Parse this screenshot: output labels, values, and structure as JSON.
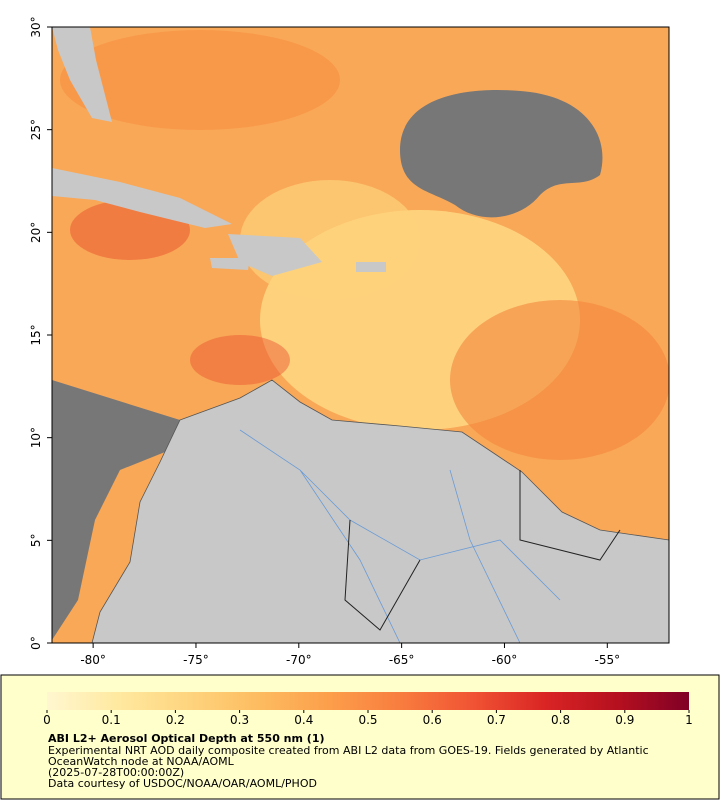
{
  "map": {
    "xlim": [
      -82,
      -52
    ],
    "ylim": [
      0,
      30
    ],
    "xticks": [
      {
        "value": -80,
        "label": "-80°"
      },
      {
        "value": -75,
        "label": "-75°"
      },
      {
        "value": -70,
        "label": "-70°"
      },
      {
        "value": -65,
        "label": "-65°"
      },
      {
        "value": -60,
        "label": "-60°"
      },
      {
        "value": -55,
        "label": "-55°"
      }
    ],
    "yticks": [
      {
        "value": 0,
        "label": "0°"
      },
      {
        "value": 5,
        "label": "5°"
      },
      {
        "value": 10,
        "label": "10°"
      },
      {
        "value": 15,
        "label": "15°"
      },
      {
        "value": 20,
        "label": "20°"
      },
      {
        "value": 25,
        "label": "25°"
      },
      {
        "value": 30,
        "label": "30°"
      }
    ]
  },
  "colorbar": {
    "range": [
      0,
      1
    ],
    "ticks": [
      0,
      0.1,
      0.2,
      0.3,
      0.4,
      0.5,
      0.6,
      0.7,
      0.8,
      0.9,
      1
    ],
    "colors": [
      "#fff7d0",
      "#ffe9a0",
      "#fed47e",
      "#fdbb5f",
      "#fc9d4a",
      "#f87b3e",
      "#f05233",
      "#d92424",
      "#b5101f",
      "#800026"
    ]
  },
  "caption": {
    "title": "ABI L2+ Aerosol Optical Depth at 550 nm (1)",
    "lines": [
      "Experimental NRT AOD daily composite created from ABI L2 data from GOES-19. Fields generated by Atlantic",
      "OceanWatch node at NOAA/AOML",
      "(2025-07-28T00:00:00Z)",
      "Data courtesy of USDOC/NOAA/OAR/AOML/PHOD"
    ]
  }
}
